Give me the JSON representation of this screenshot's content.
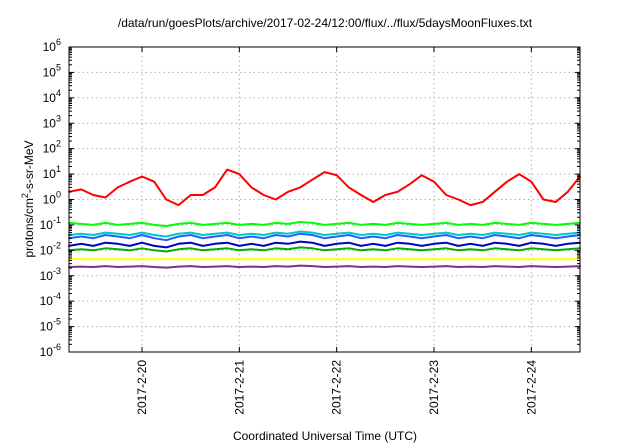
{
  "chart_data": {
    "type": "line",
    "title": "/data/run/goesPlots/archive/2017-02-24/12:00/flux/../flux/5daysMoonFluxes.txt",
    "xlabel": "Coordinated Universal Time (UTC)",
    "ylabel_parts": [
      "protons/cm",
      "2",
      "-s-sr-MeV"
    ],
    "y_scale": "log",
    "ylim": [
      1e-06,
      1000000.0
    ],
    "xlim": [
      "2017-02-19 06:00",
      "2017-02-24 12:00"
    ],
    "grid": true,
    "legend": "none",
    "y_ticks": [
      {
        "base": "10",
        "exp": "-6"
      },
      {
        "base": "10",
        "exp": "-5"
      },
      {
        "base": "10",
        "exp": "-4"
      },
      {
        "base": "10",
        "exp": "-3"
      },
      {
        "base": "10",
        "exp": "-2"
      },
      {
        "base": "10",
        "exp": "-1"
      },
      {
        "base": "10",
        "exp": "0"
      },
      {
        "base": "10",
        "exp": "1"
      },
      {
        "base": "10",
        "exp": "2"
      },
      {
        "base": "10",
        "exp": "3"
      },
      {
        "base": "10",
        "exp": "4"
      },
      {
        "base": "10",
        "exp": "5"
      },
      {
        "base": "10",
        "exp": "6"
      }
    ],
    "x_ticks": [
      "2017-2-20",
      "2017-2-21",
      "2017-2-22",
      "2017-2-23",
      "2017-2-24"
    ],
    "x": [
      "2017-02-19 06:00",
      "2017-02-19 09:00",
      "2017-02-19 12:00",
      "2017-02-19 15:00",
      "2017-02-19 18:00",
      "2017-02-19 21:00",
      "2017-02-20 00:00",
      "2017-02-20 03:00",
      "2017-02-20 06:00",
      "2017-02-20 09:00",
      "2017-02-20 12:00",
      "2017-02-20 15:00",
      "2017-02-20 18:00",
      "2017-02-20 21:00",
      "2017-02-21 00:00",
      "2017-02-21 03:00",
      "2017-02-21 06:00",
      "2017-02-21 09:00",
      "2017-02-21 12:00",
      "2017-02-21 15:00",
      "2017-02-21 18:00",
      "2017-02-21 21:00",
      "2017-02-22 00:00",
      "2017-02-22 03:00",
      "2017-02-22 06:00",
      "2017-02-22 09:00",
      "2017-02-22 12:00",
      "2017-02-22 15:00",
      "2017-02-22 18:00",
      "2017-02-22 21:00",
      "2017-02-23 00:00",
      "2017-02-23 03:00",
      "2017-02-23 06:00",
      "2017-02-23 09:00",
      "2017-02-23 12:00",
      "2017-02-23 15:00",
      "2017-02-23 18:00",
      "2017-02-23 21:00",
      "2017-02-24 00:00",
      "2017-02-24 03:00",
      "2017-02-24 06:00",
      "2017-02-24 09:00",
      "2017-02-24 12:00"
    ],
    "series": [
      {
        "color": "#ff0000",
        "width": 2,
        "values": [
          2,
          2.5,
          1.5,
          1.2,
          3,
          5,
          8,
          5,
          1,
          0.6,
          1.5,
          1.5,
          3,
          15,
          10,
          3,
          1.5,
          1,
          2,
          3,
          6,
          12,
          9,
          3,
          1.5,
          0.8,
          1.5,
          2,
          4,
          9,
          5,
          1.5,
          1,
          0.6,
          0.8,
          2,
          5,
          10,
          5,
          1,
          0.8,
          2,
          8
        ]
      },
      {
        "color": "#00ff00",
        "width": 2,
        "values": [
          0.12,
          0.11,
          0.1,
          0.12,
          0.1,
          0.11,
          0.12,
          0.1,
          0.09,
          0.11,
          0.12,
          0.1,
          0.11,
          0.12,
          0.1,
          0.11,
          0.1,
          0.12,
          0.11,
          0.13,
          0.12,
          0.1,
          0.11,
          0.12,
          0.1,
          0.11,
          0.1,
          0.12,
          0.11,
          0.1,
          0.11,
          0.12,
          0.1,
          0.11,
          0.1,
          0.12,
          0.11,
          0.1,
          0.12,
          0.11,
          0.1,
          0.11,
          0.12
        ]
      },
      {
        "color": "#00c8c8",
        "width": 2,
        "values": [
          0.04,
          0.045,
          0.04,
          0.05,
          0.045,
          0.04,
          0.05,
          0.04,
          0.035,
          0.045,
          0.05,
          0.04,
          0.045,
          0.05,
          0.04,
          0.045,
          0.04,
          0.05,
          0.045,
          0.055,
          0.05,
          0.04,
          0.045,
          0.05,
          0.04,
          0.045,
          0.04,
          0.05,
          0.045,
          0.04,
          0.045,
          0.05,
          0.04,
          0.045,
          0.04,
          0.05,
          0.045,
          0.04,
          0.05,
          0.045,
          0.04,
          0.045,
          0.05
        ]
      },
      {
        "color": "#2060ff",
        "width": 2,
        "values": [
          0.03,
          0.035,
          0.03,
          0.04,
          0.035,
          0.03,
          0.04,
          0.03,
          0.025,
          0.035,
          0.04,
          0.03,
          0.035,
          0.04,
          0.03,
          0.035,
          0.03,
          0.04,
          0.035,
          0.045,
          0.04,
          0.03,
          0.035,
          0.04,
          0.03,
          0.035,
          0.03,
          0.04,
          0.035,
          0.03,
          0.035,
          0.04,
          0.03,
          0.035,
          0.03,
          0.04,
          0.035,
          0.03,
          0.04,
          0.035,
          0.03,
          0.035,
          0.04
        ]
      },
      {
        "color": "#0000c0",
        "width": 2,
        "values": [
          0.015,
          0.018,
          0.015,
          0.02,
          0.018,
          0.015,
          0.02,
          0.015,
          0.013,
          0.018,
          0.02,
          0.015,
          0.018,
          0.02,
          0.015,
          0.018,
          0.015,
          0.02,
          0.018,
          0.022,
          0.02,
          0.015,
          0.018,
          0.02,
          0.015,
          0.018,
          0.015,
          0.02,
          0.018,
          0.015,
          0.018,
          0.02,
          0.015,
          0.018,
          0.015,
          0.02,
          0.018,
          0.015,
          0.02,
          0.018,
          0.015,
          0.018,
          0.02
        ]
      },
      {
        "color": "#00b000",
        "width": 2,
        "values": [
          0.01,
          0.011,
          0.01,
          0.012,
          0.011,
          0.01,
          0.012,
          0.01,
          0.009,
          0.011,
          0.012,
          0.01,
          0.011,
          0.012,
          0.01,
          0.011,
          0.01,
          0.012,
          0.011,
          0.013,
          0.012,
          0.01,
          0.011,
          0.012,
          0.01,
          0.011,
          0.01,
          0.012,
          0.011,
          0.01,
          0.011,
          0.012,
          0.01,
          0.011,
          0.01,
          0.012,
          0.011,
          0.01,
          0.012,
          0.011,
          0.01,
          0.011,
          0.012
        ]
      },
      {
        "color": "#ffff00",
        "width": 2,
        "values": [
          0.0045,
          0.0045,
          0.0045,
          0.0045,
          0.0045,
          0.0045,
          0.0045,
          0.0045,
          0.0045,
          0.0045,
          0.0045,
          0.0045,
          0.0045,
          0.0045,
          0.0045,
          0.0045,
          0.0045,
          0.0045,
          0.0045,
          0.0045,
          0.0045,
          0.0045,
          0.0045,
          0.0045,
          0.0045,
          0.0045,
          0.0045,
          0.0045,
          0.0045,
          0.0045,
          0.0045,
          0.0045,
          0.0045,
          0.0045,
          0.0045,
          0.0045,
          0.0045,
          0.0045,
          0.0045,
          0.0045,
          0.0045,
          0.0045,
          0.0045
        ]
      },
      {
        "color": "#803080",
        "width": 2,
        "values": [
          0.0022,
          0.0023,
          0.0022,
          0.0024,
          0.0022,
          0.0023,
          0.0024,
          0.0022,
          0.0021,
          0.0023,
          0.0024,
          0.0022,
          0.0023,
          0.0024,
          0.0022,
          0.0023,
          0.0022,
          0.0024,
          0.0023,
          0.0025,
          0.0024,
          0.0022,
          0.0023,
          0.0024,
          0.0022,
          0.0023,
          0.0022,
          0.0024,
          0.0023,
          0.0022,
          0.0023,
          0.0024,
          0.0022,
          0.0023,
          0.0022,
          0.0024,
          0.0023,
          0.0022,
          0.0024,
          0.0023,
          0.0022,
          0.0023,
          0.0024
        ]
      }
    ]
  }
}
